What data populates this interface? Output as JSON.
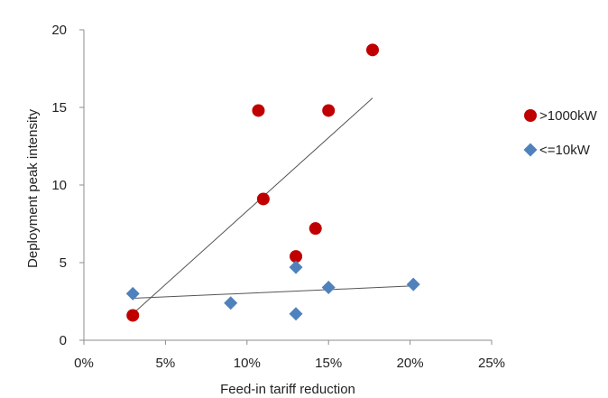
{
  "chart_data": {
    "type": "scatter",
    "xlabel": "Feed-in tariff reduction",
    "ylabel": "Deployment peak intensity",
    "xlim": [
      0,
      0.25
    ],
    "ylim": [
      0,
      20
    ],
    "x_ticks": [
      0,
      0.05,
      0.1,
      0.15,
      0.2,
      0.25
    ],
    "x_tick_labels": [
      "0%",
      "5%",
      "10%",
      "15%",
      "20%",
      "25%"
    ],
    "y_ticks": [
      0,
      5,
      10,
      15,
      20
    ],
    "y_tick_labels": [
      "0",
      "5",
      "10",
      "15",
      "20"
    ],
    "grid": false,
    "legend_position": "right",
    "series": [
      {
        "name": ">1000kW",
        "marker": "circle",
        "color": "#C00000",
        "points": [
          {
            "x": 0.03,
            "y": 1.6
          },
          {
            "x": 0.107,
            "y": 14.8
          },
          {
            "x": 0.11,
            "y": 9.1
          },
          {
            "x": 0.13,
            "y": 5.4
          },
          {
            "x": 0.142,
            "y": 7.2
          },
          {
            "x": 0.15,
            "y": 14.8
          },
          {
            "x": 0.177,
            "y": 18.7
          }
        ],
        "trendline": {
          "x1": 0.03,
          "y1": 1.7,
          "x2": 0.177,
          "y2": 15.6
        }
      },
      {
        "name": "<=10kW",
        "marker": "diamond",
        "color": "#4F81BD",
        "points": [
          {
            "x": 0.03,
            "y": 3.0
          },
          {
            "x": 0.09,
            "y": 2.4
          },
          {
            "x": 0.13,
            "y": 4.7
          },
          {
            "x": 0.13,
            "y": 1.7
          },
          {
            "x": 0.15,
            "y": 3.4
          },
          {
            "x": 0.202,
            "y": 3.6
          }
        ],
        "trendline": {
          "x1": 0.03,
          "y1": 2.7,
          "x2": 0.202,
          "y2": 3.5
        }
      }
    ]
  }
}
